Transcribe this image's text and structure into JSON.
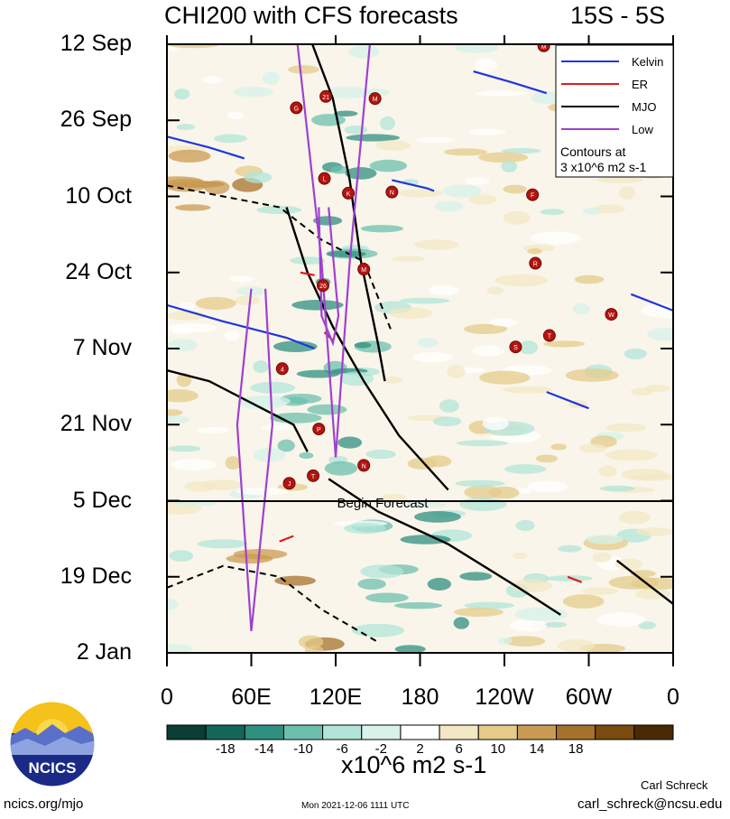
{
  "title": "CHI200 with CFS forecasts",
  "region": "15S - 5S",
  "forecast_label": "Begin Forecast",
  "legend": {
    "items": [
      {
        "label": "Kelvin",
        "color": "#1f35e0"
      },
      {
        "label": "ER",
        "color": "#e01a1a"
      },
      {
        "label": "MJO",
        "color": "#000000"
      },
      {
        "label": "Low",
        "color": "#a040d0"
      }
    ],
    "note_line1": "Contours at",
    "note_line2": "3 x10^6 m2 s-1"
  },
  "colorbar": {
    "units": "x10^6 m2 s-1",
    "tick_labels": [
      "-18",
      "-14",
      "-10",
      "-6",
      "-2",
      "2",
      "6",
      "10",
      "14",
      "18"
    ],
    "colors": [
      "#0a3d33",
      "#14665a",
      "#2f8f80",
      "#6cbfad",
      "#b2e4d8",
      "#d7f2ea",
      "#ffffff",
      "#f3e7c4",
      "#e4cb8a",
      "#c99b52",
      "#a5712b",
      "#7a4a10",
      "#4a2a05"
    ]
  },
  "logo": {
    "text": "NCICS"
  },
  "footer": {
    "site": "ncics.org/mjo",
    "timestamp": "Mon 2021-12-06 1111 UTC",
    "author": "Carl Schreck",
    "email": "carl_schreck@ncsu.edu"
  },
  "chart_data": {
    "type": "heatmap",
    "title": "CHI200 with CFS forecasts",
    "xlabel": "",
    "ylabel": "",
    "x_tick_labels": [
      "0",
      "60E",
      "120E",
      "180",
      "120W",
      "60W",
      "0"
    ],
    "x_range_deg": [
      0,
      360
    ],
    "y_tick_labels": [
      "12 Sep",
      "26 Sep",
      "10 Oct",
      "24 Oct",
      "7 Nov",
      "21 Nov",
      "5 Dec",
      "19 Dec",
      "2 Jan"
    ],
    "y_range_days": [
      0,
      112
    ],
    "forecast_start_day": 84,
    "contour_interval": "3 x10^6 m2 s-1",
    "storms": [
      {
        "label": "G",
        "lon": 92,
        "day": 11.7
      },
      {
        "label": "21",
        "lon": 113,
        "day": 9.6
      },
      {
        "label": "M",
        "lon": 148,
        "day": 10
      },
      {
        "label": "L",
        "lon": 112,
        "day": 24.7
      },
      {
        "label": "K",
        "lon": 129,
        "day": 27.4
      },
      {
        "label": "N",
        "lon": 160,
        "day": 27.2
      },
      {
        "label": "F",
        "lon": 260,
        "day": 27.7
      },
      {
        "label": "R",
        "lon": 262,
        "day": 40.3
      },
      {
        "label": "M",
        "lon": 140,
        "day": 41.4
      },
      {
        "label": "26",
        "lon": 111,
        "day": 44.4
      },
      {
        "label": "W",
        "lon": 316,
        "day": 49.7
      },
      {
        "label": "T",
        "lon": 272,
        "day": 53.6
      },
      {
        "label": "S",
        "lon": 248,
        "day": 55.7
      },
      {
        "label": "4",
        "lon": 82,
        "day": 59.7
      },
      {
        "label": "P",
        "lon": 108,
        "day": 70.8
      },
      {
        "label": "N",
        "lon": 140,
        "day": 77.5
      },
      {
        "label": "T",
        "lon": 104,
        "day": 79.4
      },
      {
        "label": "J",
        "lon": 87,
        "day": 80.8
      },
      {
        "label": "M",
        "lon": 268,
        "day": 0.3
      }
    ],
    "contours": {
      "mjo_positive": [
        [
          [
            102,
            -1
          ],
          [
            118,
            10
          ],
          [
            130,
            25
          ],
          [
            138,
            40
          ],
          [
            150,
            55
          ],
          [
            155,
            62
          ]
        ],
        [
          [
            85,
            30
          ],
          [
            100,
            42
          ],
          [
            118,
            52
          ],
          [
            140,
            62
          ],
          [
            165,
            72
          ],
          [
            200,
            82
          ]
        ],
        [
          [
            0,
            60
          ],
          [
            30,
            62
          ],
          [
            60,
            66
          ],
          [
            90,
            70
          ],
          [
            100,
            75
          ]
        ],
        [
          [
            115,
            80
          ],
          [
            150,
            86
          ],
          [
            200,
            92
          ],
          [
            250,
            100
          ],
          [
            280,
            105
          ]
        ],
        [
          [
            320,
            95
          ],
          [
            345,
            100
          ],
          [
            360,
            103
          ]
        ]
      ],
      "mjo_negative": [
        [
          [
            0,
            26
          ],
          [
            40,
            28
          ],
          [
            80,
            30
          ],
          [
            110,
            36
          ],
          [
            140,
            40
          ],
          [
            160,
            53
          ]
        ],
        [
          [
            0,
            100
          ],
          [
            40,
            96
          ],
          [
            80,
            98
          ],
          [
            110,
            104
          ],
          [
            150,
            110
          ]
        ]
      ],
      "kelvin": [
        [
          [
            0,
            17
          ],
          [
            30,
            19
          ],
          [
            55,
            21
          ]
        ],
        [
          [
            0,
            48
          ],
          [
            40,
            51
          ],
          [
            85,
            54
          ],
          [
            105,
            56
          ]
        ],
        [
          [
            160,
            25
          ],
          [
            185,
            26.5
          ],
          [
            190,
            27
          ]
        ],
        [
          [
            218,
            5
          ],
          [
            245,
            7
          ],
          [
            270,
            9
          ]
        ],
        [
          [
            270,
            64
          ],
          [
            290,
            66
          ],
          [
            300,
            67
          ]
        ],
        [
          [
            330,
            46
          ],
          [
            350,
            48
          ],
          [
            360,
            49
          ]
        ]
      ],
      "er": [
        [
          [
            95,
            42
          ],
          [
            105,
            42.5
          ]
        ],
        [
          [
            112,
            53
          ],
          [
            118,
            54.5
          ]
        ],
        [
          [
            80,
            91.5
          ],
          [
            90,
            90.5
          ]
        ],
        [
          [
            285,
            98
          ],
          [
            295,
            99
          ]
        ]
      ],
      "low": [
        [
          [
            92,
            -2
          ],
          [
            110,
            40
          ],
          [
            120,
            76
          ],
          [
            130,
            40
          ],
          [
            145,
            -2
          ]
        ],
        [
          [
            60,
            45
          ],
          [
            50,
            70
          ],
          [
            60,
            108
          ],
          [
            75,
            70
          ],
          [
            70,
            45
          ]
        ],
        [
          [
            108,
            30
          ],
          [
            110,
            50
          ],
          [
            118,
            55
          ],
          [
            122,
            50
          ],
          [
            115,
            30
          ]
        ]
      ]
    }
  }
}
